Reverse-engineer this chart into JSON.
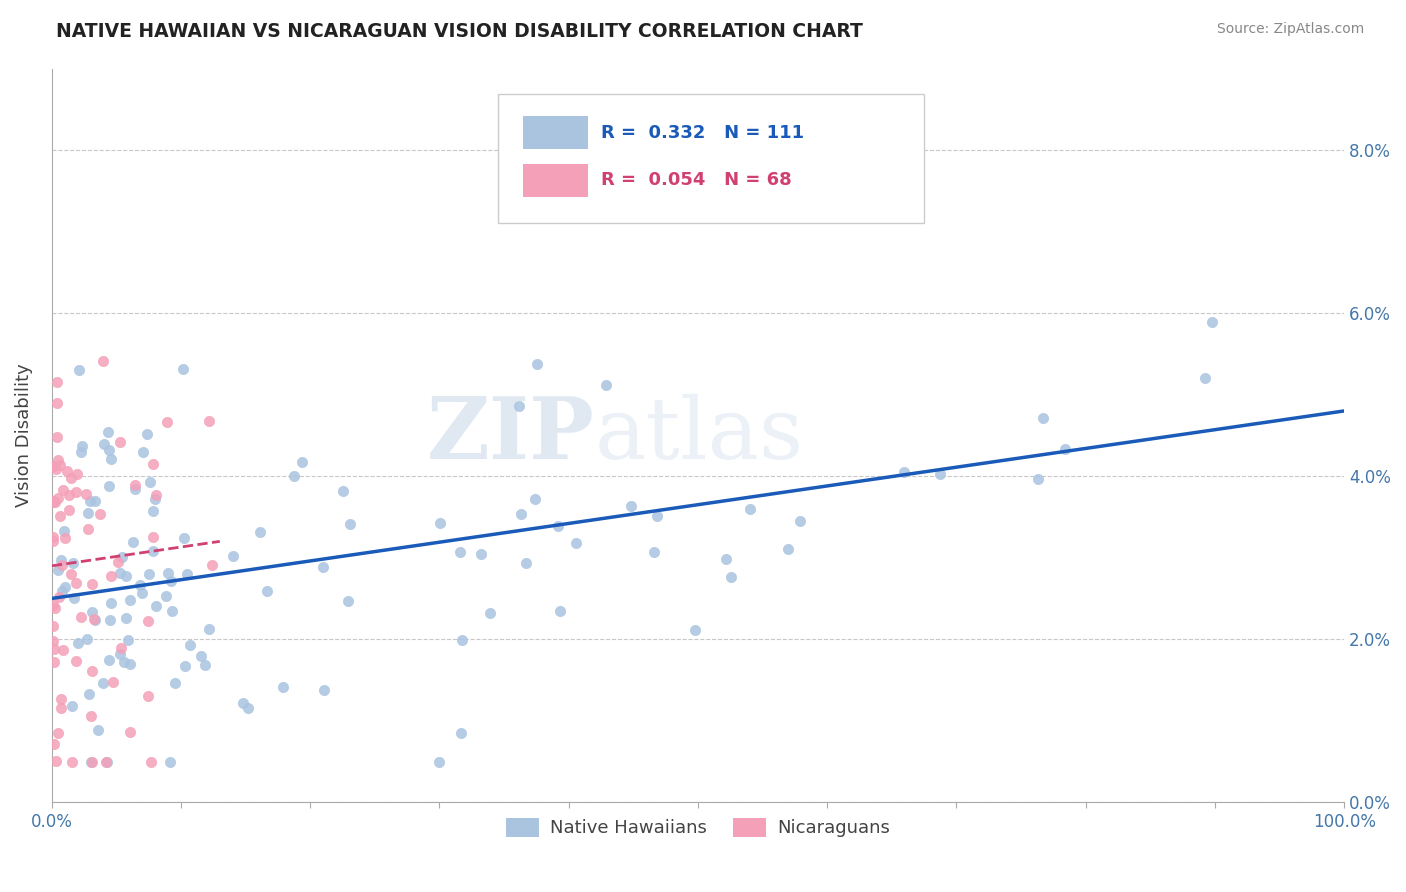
{
  "title": "NATIVE HAWAIIAN VS NICARAGUAN VISION DISABILITY CORRELATION CHART",
  "source": "Source: ZipAtlas.com",
  "ylabel": "Vision Disability",
  "r_blue": 0.332,
  "n_blue": 111,
  "r_pink": 0.054,
  "n_pink": 68,
  "blue_color": "#aac4e0",
  "pink_color": "#f4a0b8",
  "blue_line_color": "#1a5ab8",
  "pink_line_color": "#d04070",
  "background_color": "#ffffff",
  "watermark_zip": "ZIP",
  "watermark_atlas": "atlas",
  "legend_labels": [
    "Native Hawaiians",
    "Nicaraguans"
  ],
  "xlim": [
    0.0,
    1.0
  ],
  "ylim": [
    0.0,
    0.09
  ],
  "yticks": [
    0.0,
    0.02,
    0.04,
    0.06,
    0.08
  ],
  "ytick_labels": [
    "0.0%",
    "2.0%",
    "4.0%",
    "6.0%",
    "8.0%"
  ],
  "blue_trend_x": [
    0.0,
    1.0
  ],
  "blue_trend_y": [
    0.025,
    0.048
  ],
  "pink_trend_x": [
    0.0,
    0.13
  ],
  "pink_trend_y": [
    0.029,
    0.032
  ]
}
